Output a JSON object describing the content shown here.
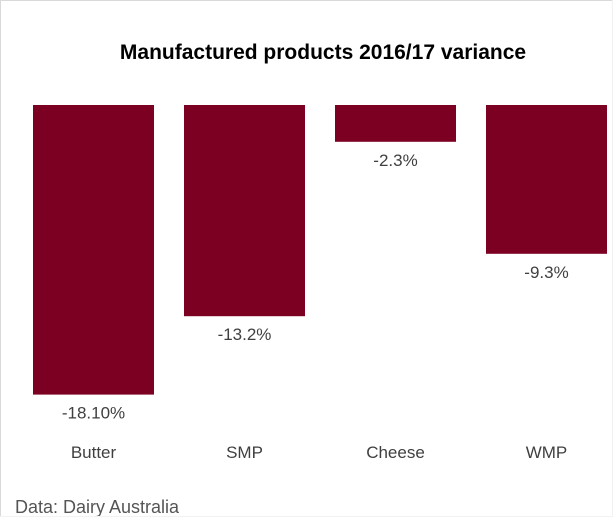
{
  "chart_data": {
    "type": "bar",
    "title": "Manufactured products 2016/17 variance",
    "categories": [
      "Butter",
      "SMP",
      "Cheese",
      "WMP"
    ],
    "values": [
      -18.1,
      -13.2,
      -2.3,
      -9.3
    ],
    "value_labels": [
      "-18.10%",
      "-13.2%",
      "-2.3%",
      "-9.3%"
    ],
    "ylim": [
      -20,
      0
    ],
    "grid": false,
    "legend": "none",
    "bar_color": "#7b0022"
  },
  "source": "Data: Dairy Australia"
}
